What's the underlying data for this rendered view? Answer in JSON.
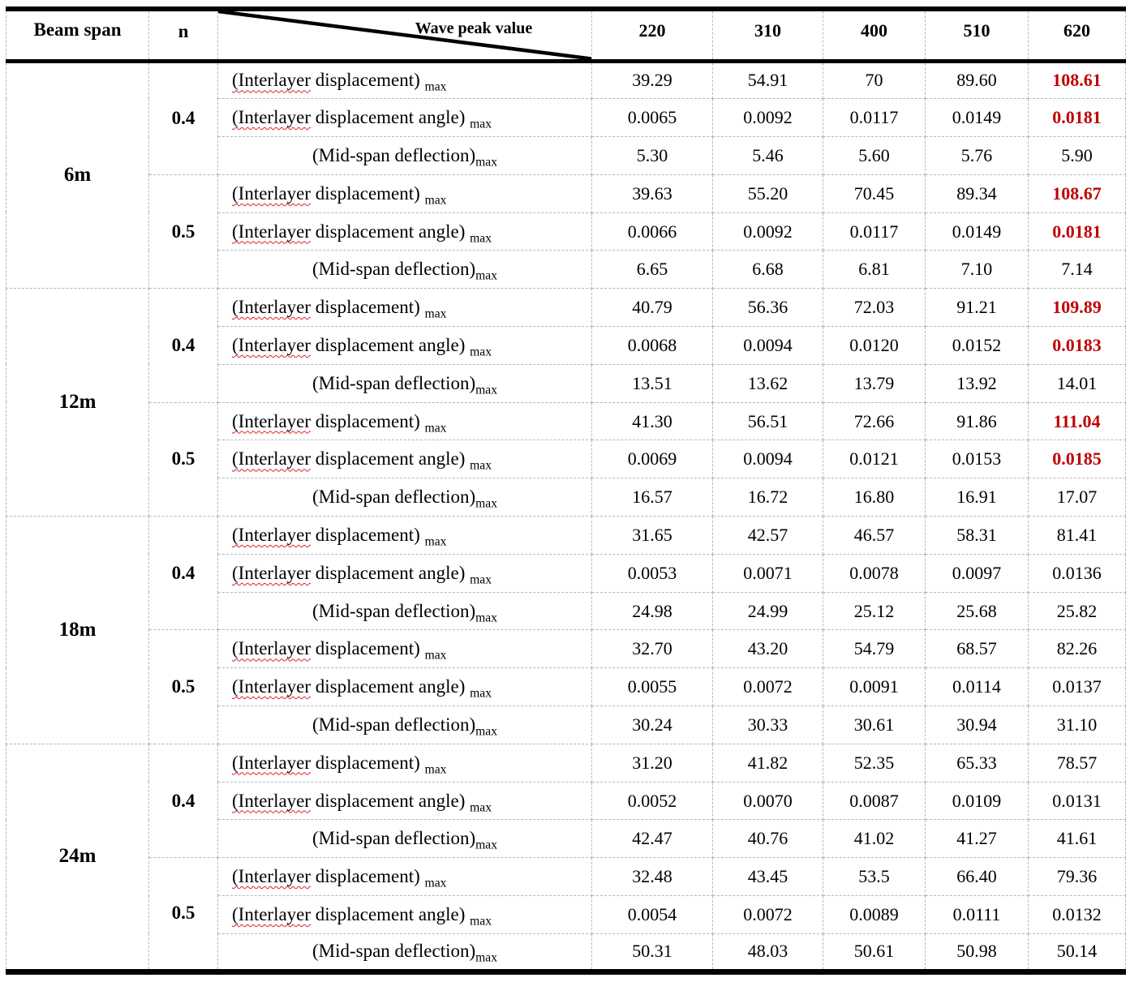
{
  "colors": {
    "highlight_red": "#C00000",
    "spellcheck_red": "#E02020",
    "grid_gray": "#B8B8B8",
    "line_black": "#000000"
  },
  "table": {
    "header": {
      "beam_span": "Beam span",
      "n": "n",
      "diagonal_label": "Wave peak value",
      "wave_peaks": [
        "220",
        "310",
        "400",
        "510",
        "620"
      ]
    },
    "metrics": [
      {
        "pre": "",
        "misspelled": "(Interlayer",
        "post": " displacement) ",
        "sub": "max",
        "align": "left"
      },
      {
        "pre": "",
        "misspelled": "(Interlayer",
        "post": " displacement angle) ",
        "sub": "max",
        "align": "left"
      },
      {
        "pre": "",
        "misspelled": "",
        "post": "(Mid-span deflection)",
        "sub": "max",
        "align": "center"
      }
    ],
    "groups": [
      {
        "beam_span": "6m",
        "subgroups": [
          {
            "n": "0.4",
            "rows": [
              {
                "values": [
                  "39.29",
                  "54.91",
                  "70",
                  "89.60",
                  "108.61"
                ],
                "red_last": true
              },
              {
                "values": [
                  "0.0065",
                  "0.0092",
                  "0.0117",
                  "0.0149",
                  "0.0181"
                ],
                "red_last": true
              },
              {
                "values": [
                  "5.30",
                  "5.46",
                  "5.60",
                  "5.76",
                  "5.90"
                ],
                "red_last": false
              }
            ]
          },
          {
            "n": "0.5",
            "rows": [
              {
                "values": [
                  "39.63",
                  "55.20",
                  "70.45",
                  "89.34",
                  "108.67"
                ],
                "red_last": true
              },
              {
                "values": [
                  "0.0066",
                  "0.0092",
                  "0.0117",
                  "0.0149",
                  "0.0181"
                ],
                "red_last": true
              },
              {
                "values": [
                  "6.65",
                  "6.68",
                  "6.81",
                  "7.10",
                  "7.14"
                ],
                "red_last": false
              }
            ]
          }
        ]
      },
      {
        "beam_span": "12m",
        "subgroups": [
          {
            "n": "0.4",
            "rows": [
              {
                "values": [
                  "40.79",
                  "56.36",
                  "72.03",
                  "91.21",
                  "109.89"
                ],
                "red_last": true
              },
              {
                "values": [
                  "0.0068",
                  "0.0094",
                  "0.0120",
                  "0.0152",
                  "0.0183"
                ],
                "red_last": true
              },
              {
                "values": [
                  "13.51",
                  "13.62",
                  "13.79",
                  "13.92",
                  "14.01"
                ],
                "red_last": false
              }
            ]
          },
          {
            "n": "0.5",
            "rows": [
              {
                "values": [
                  "41.30",
                  "56.51",
                  "72.66",
                  "91.86",
                  "111.04"
                ],
                "red_last": true
              },
              {
                "values": [
                  "0.0069",
                  "0.0094",
                  "0.0121",
                  "0.0153",
                  "0.0185"
                ],
                "red_last": true
              },
              {
                "values": [
                  "16.57",
                  "16.72",
                  "16.80",
                  "16.91",
                  "17.07"
                ],
                "red_last": false
              }
            ]
          }
        ]
      },
      {
        "beam_span": "18m",
        "subgroups": [
          {
            "n": "0.4",
            "rows": [
              {
                "values": [
                  "31.65",
                  "42.57",
                  "46.57",
                  "58.31",
                  "81.41"
                ],
                "red_last": false
              },
              {
                "values": [
                  "0.0053",
                  "0.0071",
                  "0.0078",
                  "0.0097",
                  "0.0136"
                ],
                "red_last": false
              },
              {
                "values": [
                  "24.98",
                  "24.99",
                  "25.12",
                  "25.68",
                  "25.82"
                ],
                "red_last": false
              }
            ]
          },
          {
            "n": "0.5",
            "rows": [
              {
                "values": [
                  "32.70",
                  "43.20",
                  "54.79",
                  "68.57",
                  "82.26"
                ],
                "red_last": false
              },
              {
                "values": [
                  "0.0055",
                  "0.0072",
                  "0.0091",
                  "0.0114",
                  "0.0137"
                ],
                "red_last": false
              },
              {
                "values": [
                  "30.24",
                  "30.33",
                  "30.61",
                  "30.94",
                  "31.10"
                ],
                "red_last": false
              }
            ]
          }
        ]
      },
      {
        "beam_span": "24m",
        "subgroups": [
          {
            "n": "0.4",
            "rows": [
              {
                "values": [
                  "31.20",
                  "41.82",
                  "52.35",
                  "65.33",
                  "78.57"
                ],
                "red_last": false
              },
              {
                "values": [
                  "0.0052",
                  "0.0070",
                  "0.0087",
                  "0.0109",
                  "0.0131"
                ],
                "red_last": false
              },
              {
                "values": [
                  "42.47",
                  "40.76",
                  "41.02",
                  "41.27",
                  "41.61"
                ],
                "red_last": false
              }
            ]
          },
          {
            "n": "0.5",
            "rows": [
              {
                "values": [
                  "32.48",
                  "43.45",
                  "53.5",
                  "66.40",
                  "79.36"
                ],
                "red_last": false
              },
              {
                "values": [
                  "0.0054",
                  "0.0072",
                  "0.0089",
                  "0.0111",
                  "0.0132"
                ],
                "red_last": false
              },
              {
                "values": [
                  "50.31",
                  "48.03",
                  "50.61",
                  "50.98",
                  "50.14"
                ],
                "red_last": false
              }
            ]
          }
        ]
      }
    ]
  }
}
